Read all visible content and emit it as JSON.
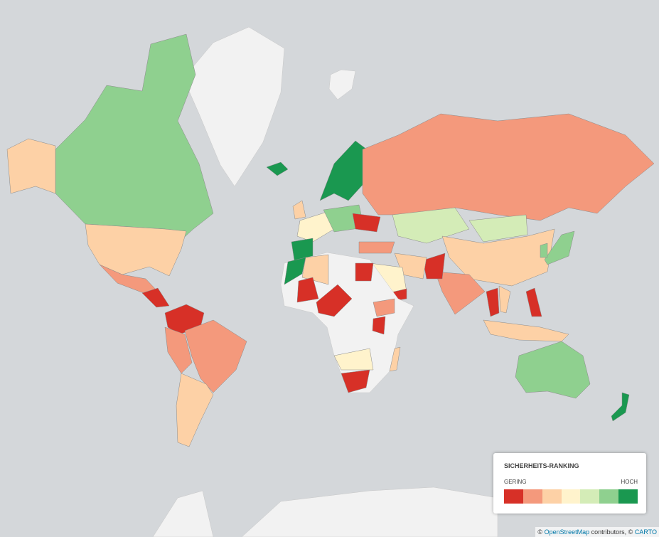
{
  "legend": {
    "title": "SICHERHEITS-RANKING",
    "low_label": "GERING",
    "high_label": "HOCH",
    "colors": [
      "#d73027",
      "#f4997c",
      "#fdd1a6",
      "#fff3cc",
      "#d4ecb7",
      "#8fd08f",
      "#1a9850"
    ]
  },
  "attribution": {
    "prefix": "©",
    "link1": "OpenStreetMap",
    "middle": "contributors, ©",
    "link2": "CARTO"
  }
}
